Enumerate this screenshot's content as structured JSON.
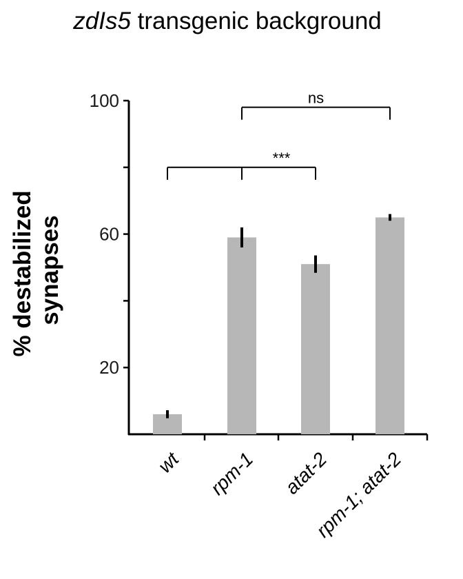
{
  "title": {
    "italic_part": "zdIs5",
    "rest": " transgenic background"
  },
  "chart_data": {
    "type": "bar",
    "categories": [
      "wt",
      "rpm-1",
      "atat-2",
      "rpm-1; atat-2"
    ],
    "values": [
      6,
      59,
      51,
      65
    ],
    "errors": [
      1.2,
      3.0,
      2.6,
      1.0
    ],
    "ylabel_lines": [
      "% destabilized",
      "synapses"
    ],
    "xlabel": "",
    "ylim": [
      0,
      100
    ],
    "yticks": [
      20,
      60,
      100
    ],
    "bar_color": "#b7b7b7",
    "error_color": "#000000",
    "significance": [
      {
        "from": 0,
        "to": [
          1,
          2
        ],
        "label": "***",
        "y": 80
      },
      {
        "from": 1,
        "to": [
          3
        ],
        "label": "ns",
        "y": 98
      }
    ]
  }
}
